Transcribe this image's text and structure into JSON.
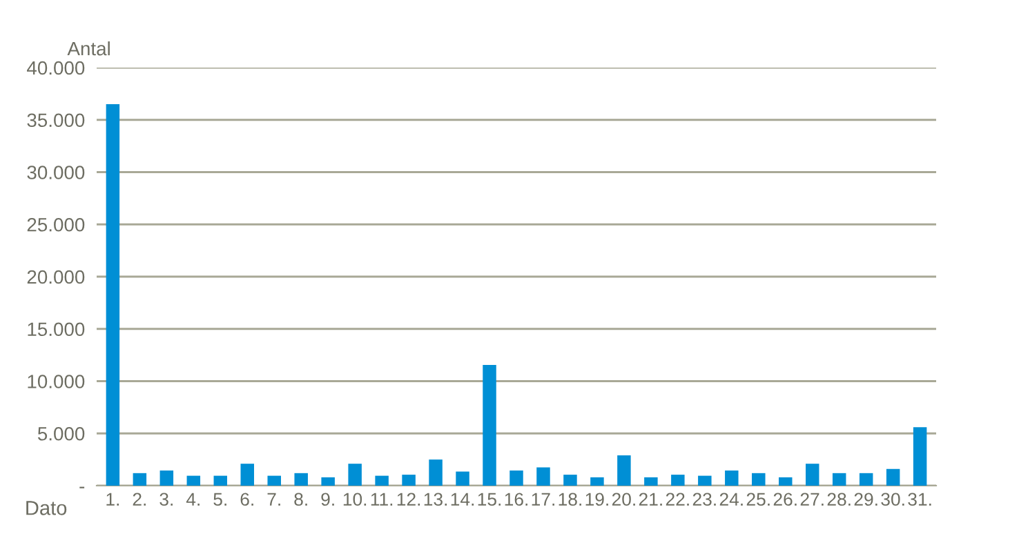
{
  "chart_data": {
    "type": "bar",
    "xlabel": "Dato",
    "ylabel": "Antal",
    "categories": [
      "1.",
      "2.",
      "3.",
      "4.",
      "5.",
      "6.",
      "7.",
      "8.",
      "9.",
      "10.",
      "11.",
      "12.",
      "13.",
      "14.",
      "15.",
      "16.",
      "17.",
      "18.",
      "19.",
      "20.",
      "21.",
      "22.",
      "23.",
      "24.",
      "25.",
      "26.",
      "27.",
      "28.",
      "29.",
      "30.",
      "31."
    ],
    "values": [
      36500,
      1200,
      1450,
      950,
      950,
      2100,
      950,
      1200,
      800,
      2100,
      950,
      1050,
      2500,
      1350,
      11550,
      1450,
      1750,
      1050,
      800,
      2900,
      800,
      1050,
      950,
      1450,
      1200,
      800,
      2100,
      1200,
      1200,
      1600,
      5600
    ],
    "color": "#008fd5",
    "ylim": [
      0,
      40000
    ],
    "yticks": [
      {
        "value": 0,
        "label": "-"
      },
      {
        "value": 5000,
        "label": "5.000"
      },
      {
        "value": 10000,
        "label": "10.000"
      },
      {
        "value": 15000,
        "label": "15.000"
      },
      {
        "value": 20000,
        "label": "20.000"
      },
      {
        "value": 25000,
        "label": "25.000"
      },
      {
        "value": 30000,
        "label": "30.000"
      },
      {
        "value": 35000,
        "label": "35.000"
      },
      {
        "value": 40000,
        "label": "40.000"
      }
    ],
    "grid": "y"
  }
}
